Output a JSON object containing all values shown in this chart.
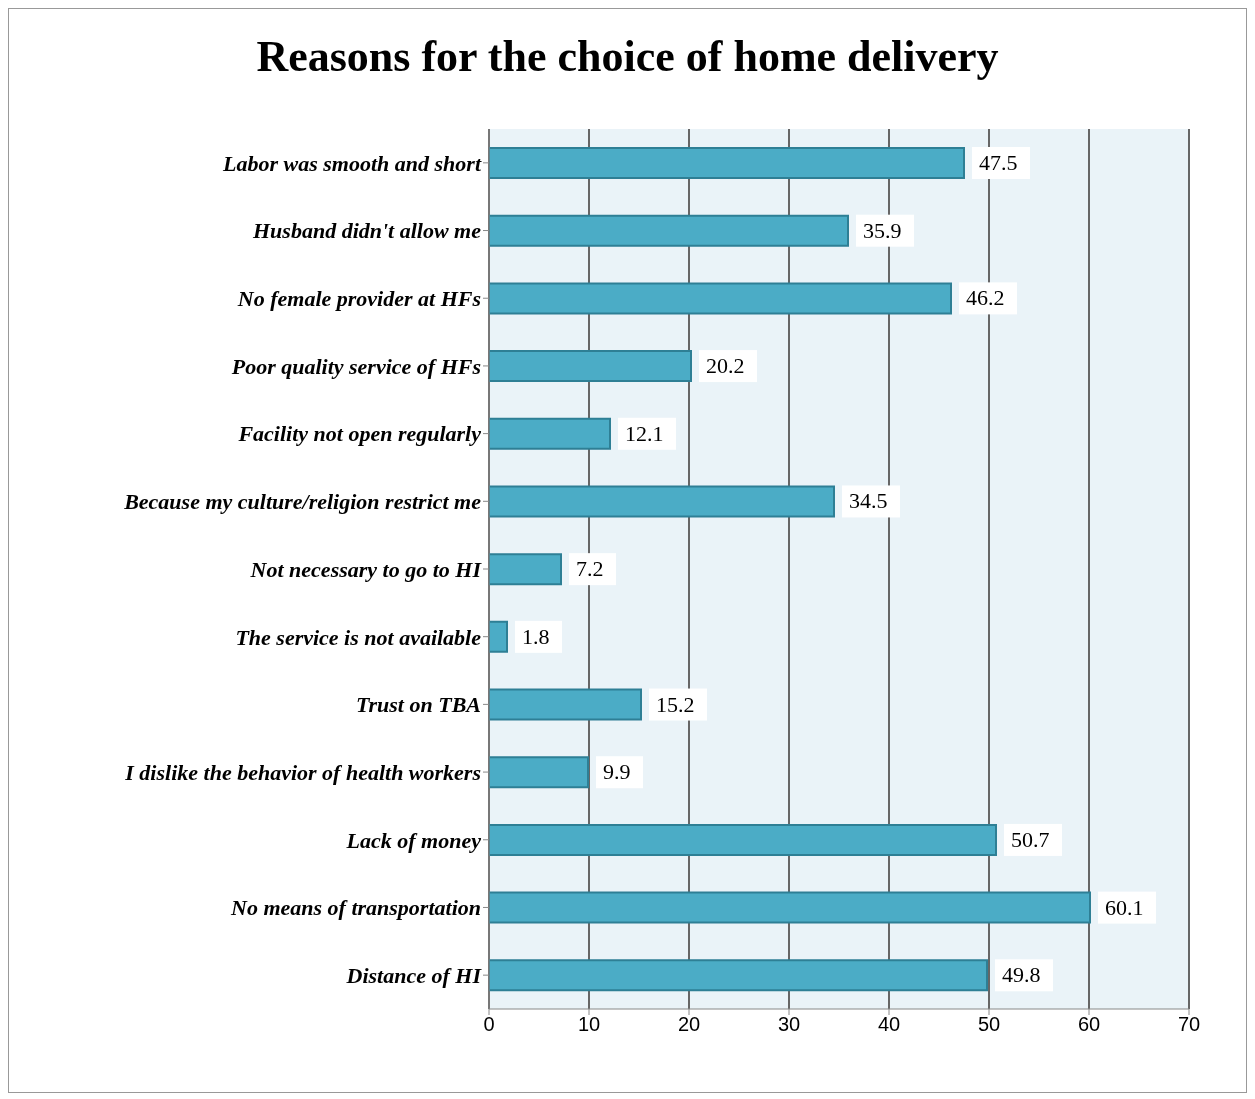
{
  "chart_data": {
    "type": "bar",
    "orientation": "horizontal",
    "title": "Reasons for the choice of home delivery",
    "categories": [
      "Labor was smooth and short",
      "Husband didn't allow me",
      "No female provider at HFs",
      "Poor quality service of HFs",
      "Facility not open regularly",
      "Because my culture/religion restrict me",
      "Not necessary to go to HI",
      "The service is not available",
      "Trust on TBA",
      "I dislike the behavior of health workers",
      "Lack of money",
      "No means of transportation",
      "Distance of HI"
    ],
    "values": [
      47.5,
      35.9,
      46.2,
      20.2,
      12.1,
      34.5,
      7.2,
      1.8,
      15.2,
      9.9,
      50.7,
      60.1,
      49.8
    ],
    "color": "#4bacc6",
    "xlim": [
      0,
      70
    ],
    "xticks": [
      0,
      10,
      20,
      30,
      40,
      50,
      60,
      70
    ],
    "grid": "x",
    "data_labels": true
  }
}
